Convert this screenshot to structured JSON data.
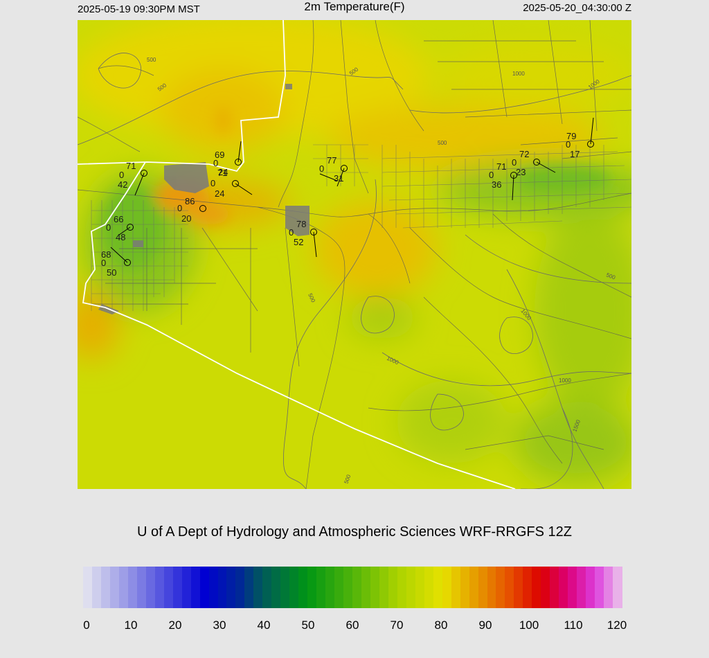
{
  "header": {
    "local_time": "2025-05-19 09:30PM MST",
    "title": "2m Temperature(F)",
    "utc_time": "2025-05-20_04:30:00 Z"
  },
  "credit": "U of A Dept of Hydrology and Atmospheric Sciences WRF-RRGFS 12Z",
  "colorbar": {
    "ticks": [
      "0",
      "10",
      "20",
      "30",
      "40",
      "50",
      "60",
      "70",
      "80",
      "90",
      "100",
      "110",
      "120"
    ]
  },
  "contour_labels": [
    "500",
    "500",
    "500",
    "1000",
    "1000",
    "1000",
    "1000",
    "1000",
    "500",
    "500",
    "500",
    "1500",
    "500"
  ],
  "stations": [
    {
      "temp": "71",
      "wind": "0",
      "dew": "42"
    },
    {
      "temp": "69",
      "wind": "0",
      "dew": "24"
    },
    {
      "temp": "71",
      "wind": "0",
      "dew": "24"
    },
    {
      "temp": "86",
      "wind": "0",
      "dew": "20"
    },
    {
      "temp": "66",
      "wind": "0",
      "dew": "48"
    },
    {
      "temp": "68",
      "wind": "0",
      "dew": "50"
    },
    {
      "temp": "78",
      "wind": "0",
      "dew": "52"
    },
    {
      "temp": "77",
      "wind": "0",
      "dew": "31"
    },
    {
      "temp": "71",
      "wind": "0",
      "dew": "36"
    },
    {
      "temp": "72",
      "wind": "0",
      "dew": "23"
    },
    {
      "temp": "79",
      "wind": "0",
      "dew": "17"
    }
  ],
  "colors": {
    "background": "#e6e6e6",
    "map_base": "#d2dc04",
    "warm": "#e8c800",
    "hot": "#e89a10",
    "cool_green": "#6fbf20",
    "border": "#ffffff",
    "roads": "#5a5a5a"
  }
}
